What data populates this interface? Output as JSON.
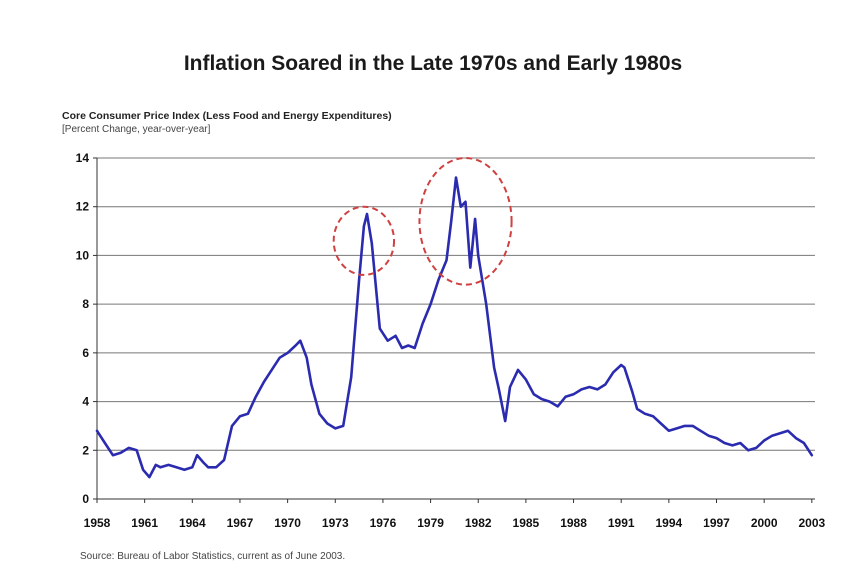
{
  "chart_data": {
    "type": "line",
    "title": "Inflation Soared in the Late 1970s and Early 1980s",
    "subtitle": "Core Consumer Price Index (Less Food and Energy Expenditures)",
    "subtitle2": "[Percent Change, year-over-year]",
    "source": "Source:  Bureau of Labor Statistics, current as of June 2003.",
    "xlabel": "",
    "ylabel": "",
    "xlim": [
      1958,
      2003.2
    ],
    "ylim": [
      0,
      14
    ],
    "x_ticks": [
      "1958",
      "1961",
      "1964",
      "1967",
      "1970",
      "1973",
      "1976",
      "1979",
      "1982",
      "1985",
      "1988",
      "1991",
      "1994",
      "1997",
      "2000",
      "2003"
    ],
    "y_ticks": [
      "0",
      "2",
      "4",
      "6",
      "8",
      "10",
      "12",
      "14"
    ],
    "grid": "horizontal",
    "line_color": "#2b2bb0",
    "highlight_color": "#d04040",
    "highlights": [
      {
        "cx": 1974.8,
        "cy": 10.6,
        "rx": 1.9,
        "ry": 1.4
      },
      {
        "cx": 1981.2,
        "cy": 11.4,
        "rx": 2.9,
        "ry": 2.6
      }
    ],
    "series": [
      {
        "x": [
          1958.0,
          1958.5,
          1959.0,
          1959.5,
          1960.0,
          1960.5,
          1960.9,
          1961.3,
          1961.7,
          1962.0,
          1962.5,
          1963.0,
          1963.5,
          1964.0,
          1964.3,
          1964.7,
          1965.0,
          1965.5,
          1966.0,
          1966.5,
          1967.0,
          1967.5,
          1968.0,
          1968.5,
          1969.0,
          1969.5,
          1970.0,
          1970.5,
          1970.8,
          1971.2,
          1971.5,
          1972.0,
          1972.5,
          1973.0,
          1973.5,
          1974.0,
          1974.5,
          1974.8,
          1975.0,
          1975.3,
          1975.8,
          1976.3,
          1976.8,
          1977.2,
          1977.6,
          1978.0,
          1978.5,
          1979.0,
          1979.5,
          1980.0,
          1980.3,
          1980.6,
          1980.9,
          1981.2,
          1981.5,
          1981.8,
          1982.0,
          1982.5,
          1983.0,
          1983.3,
          1983.7,
          1984.0,
          1984.5,
          1985.0,
          1985.5,
          1986.0,
          1986.5,
          1987.0,
          1987.5,
          1988.0,
          1988.5,
          1989.0,
          1989.5,
          1990.0,
          1990.5,
          1991.0,
          1991.2,
          1991.7,
          1992.0,
          1992.5,
          1993.0,
          1993.5,
          1994.0,
          1994.5,
          1995.0,
          1995.5,
          1996.0,
          1996.5,
          1997.0,
          1997.5,
          1998.0,
          1998.5,
          1999.0,
          1999.5,
          2000.0,
          2000.5,
          2001.0,
          2001.5,
          2002.0,
          2002.5,
          2003.0
        ],
        "y": [
          2.8,
          2.3,
          1.8,
          1.9,
          2.1,
          2.0,
          1.2,
          0.9,
          1.4,
          1.3,
          1.4,
          1.3,
          1.2,
          1.3,
          1.8,
          1.5,
          1.3,
          1.3,
          1.6,
          3.0,
          3.4,
          3.5,
          4.2,
          4.8,
          5.3,
          5.8,
          6.0,
          6.3,
          6.5,
          5.8,
          4.7,
          3.5,
          3.1,
          2.9,
          3.0,
          5.0,
          9.0,
          11.2,
          11.7,
          10.5,
          7.0,
          6.5,
          6.7,
          6.2,
          6.3,
          6.2,
          7.2,
          8.0,
          9.0,
          9.8,
          11.4,
          13.2,
          12.0,
          12.2,
          9.5,
          11.5,
          10.0,
          8.0,
          5.4,
          4.5,
          3.2,
          4.6,
          5.3,
          4.9,
          4.3,
          4.1,
          4.0,
          3.8,
          4.2,
          4.3,
          4.5,
          4.6,
          4.5,
          4.7,
          5.2,
          5.5,
          5.4,
          4.4,
          3.7,
          3.5,
          3.4,
          3.1,
          2.8,
          2.9,
          3.0,
          3.0,
          2.8,
          2.6,
          2.5,
          2.3,
          2.2,
          2.3,
          2.0,
          2.1,
          2.4,
          2.6,
          2.7,
          2.8,
          2.5,
          2.3,
          1.8
        ]
      }
    ]
  }
}
